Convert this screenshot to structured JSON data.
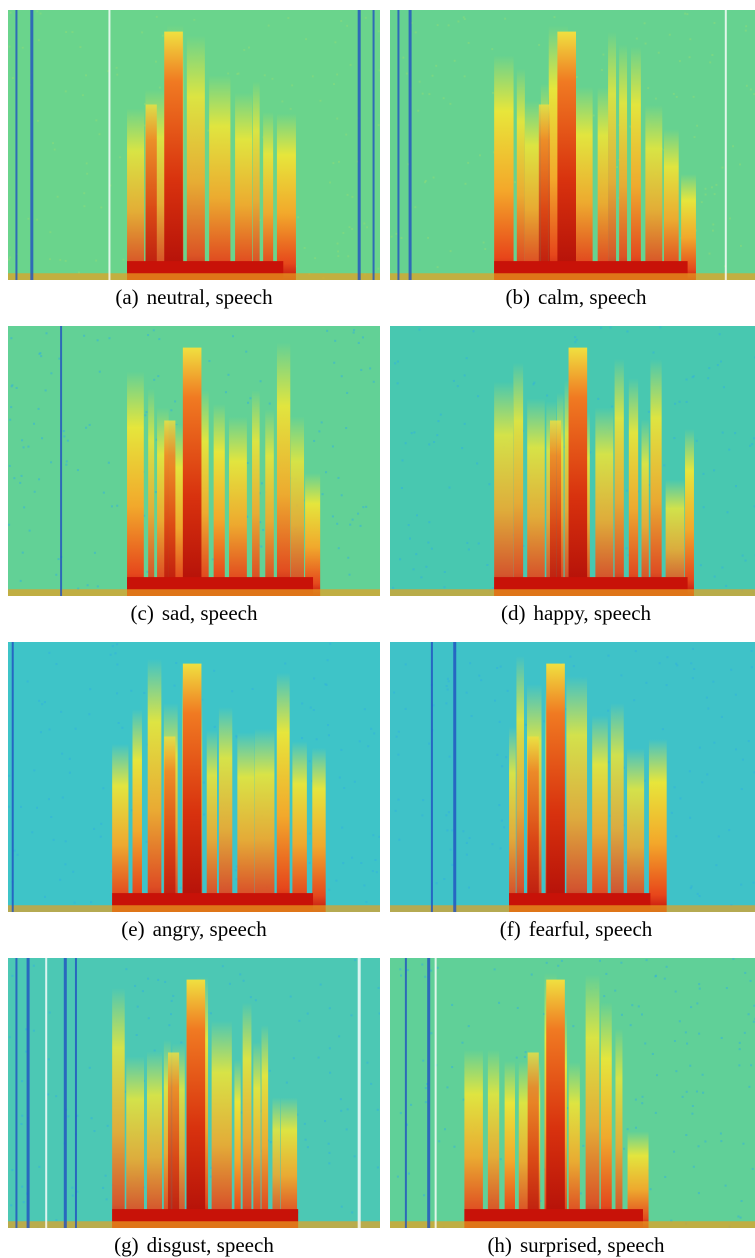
{
  "figure": {
    "panels": [
      {
        "label": "(a)",
        "caption": "neutral, speech"
      },
      {
        "label": "(b)",
        "caption": "calm, speech"
      },
      {
        "label": "(c)",
        "caption": "sad, speech"
      },
      {
        "label": "(d)",
        "caption": "happy, speech"
      },
      {
        "label": "(e)",
        "caption": "angry, speech"
      },
      {
        "label": "(f)",
        "caption": "fearful, speech"
      },
      {
        "label": "(g)",
        "caption": "disgust, speech"
      },
      {
        "label": "(h)",
        "caption": "surprised, speech"
      }
    ]
  }
}
